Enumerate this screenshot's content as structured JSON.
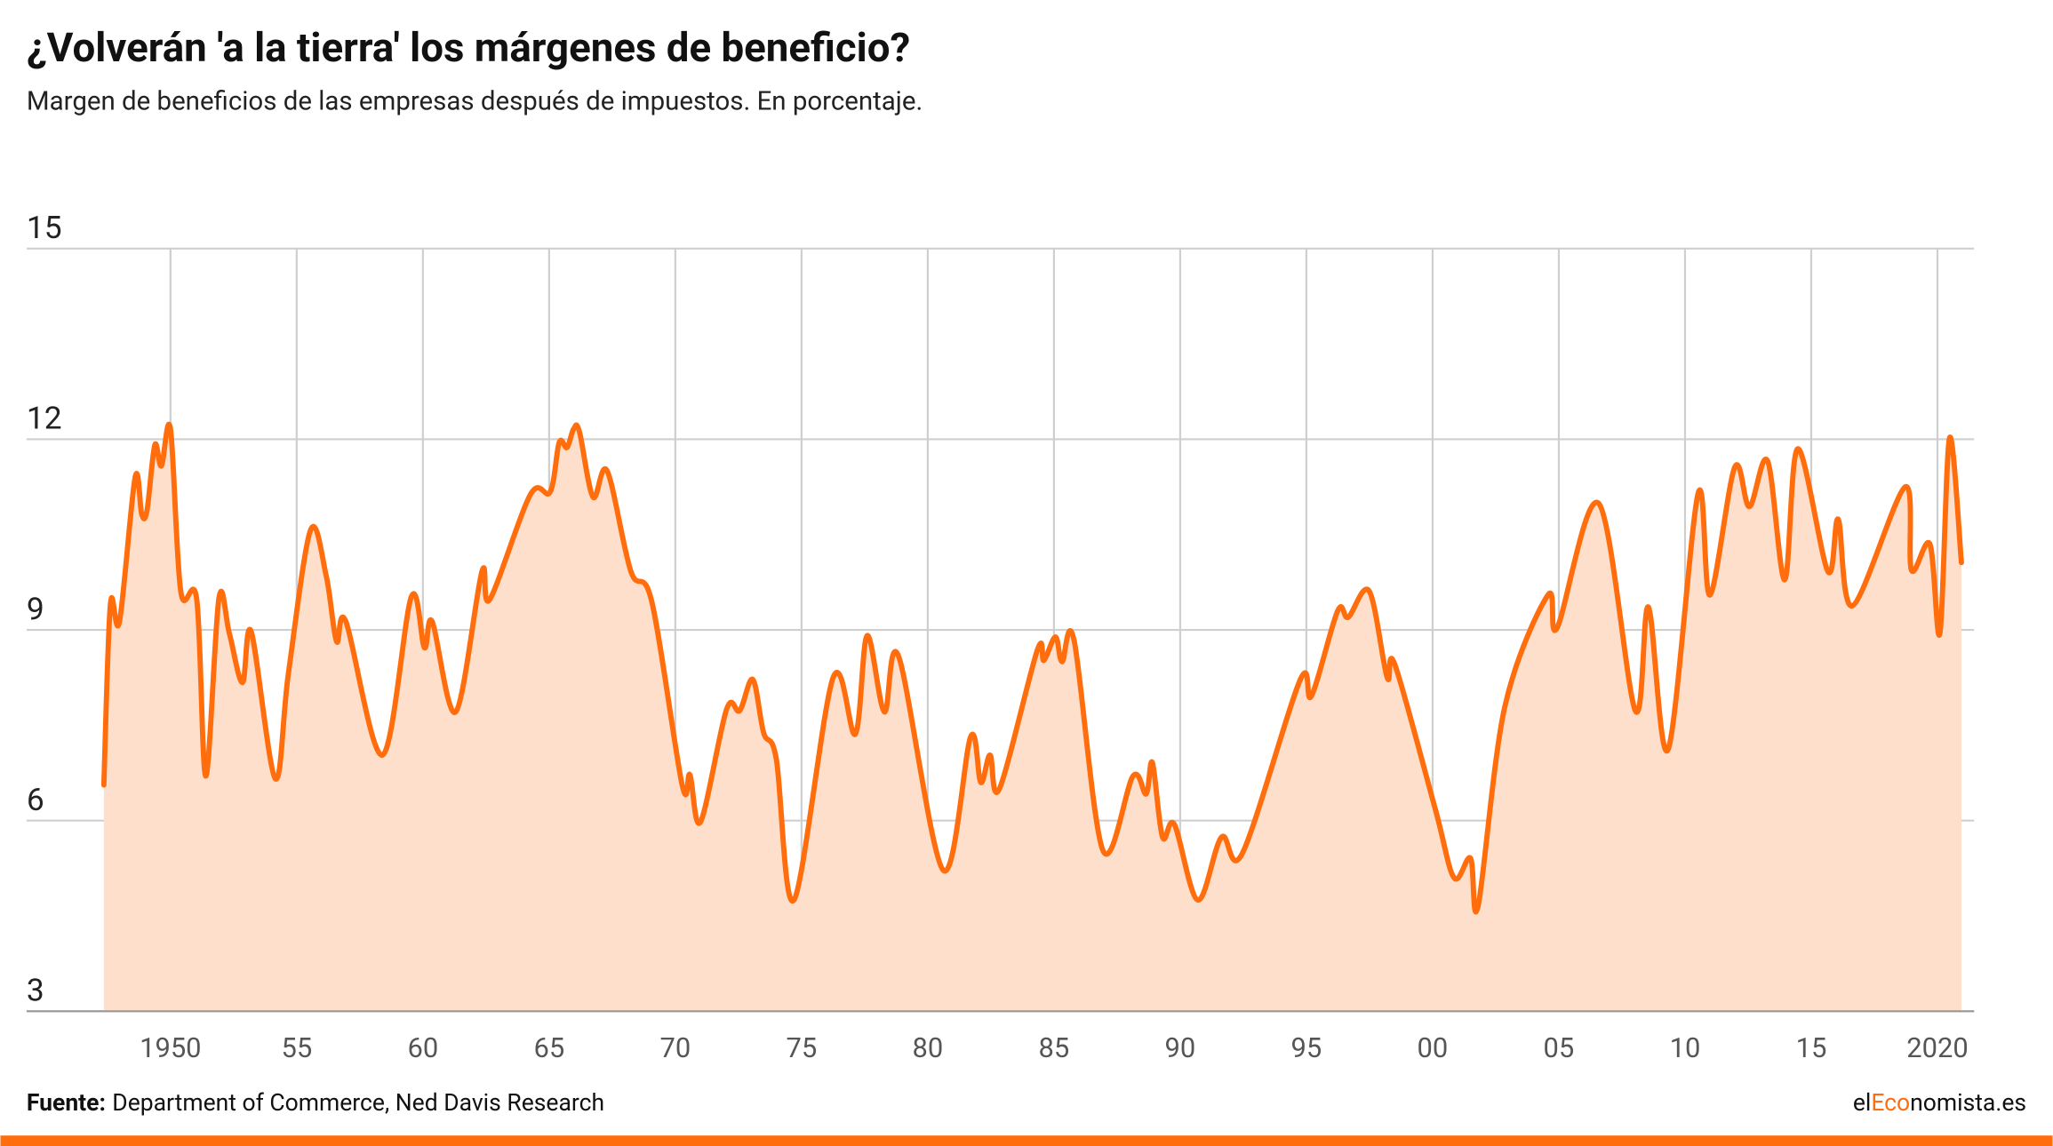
{
  "chart_data": {
    "type": "area-line",
    "title": "¿Volverán 'a la tierra' los márgenes de beneficio?",
    "subtitle": "Margen de beneficios de las empresas después de impuestos. En porcentaje.",
    "source_label": "Fuente:",
    "source": "Department of Commerce, Ned Davis Research",
    "brand": [
      "el",
      "Eco",
      "nomista.es"
    ],
    "color": "#ff6d0d",
    "fill_color": "#fddfcb",
    "grid": true,
    "xlim": [
      1944.3,
      2021.45
    ],
    "ylim": [
      3,
      15
    ],
    "yticks": [
      3,
      6,
      9,
      12,
      15
    ],
    "xticks": [
      1950,
      {
        "value": 1955,
        "label": "55"
      },
      {
        "value": 1960,
        "label": "60"
      },
      {
        "value": 1965,
        "label": "65"
      },
      {
        "value": 1970,
        "label": "70"
      },
      {
        "value": 1975,
        "label": "75"
      },
      {
        "value": 1980,
        "label": "80"
      },
      {
        "value": 1985,
        "label": "85"
      },
      {
        "value": 1990,
        "label": "90"
      },
      {
        "value": 1995,
        "label": "95"
      },
      {
        "value": 2000,
        "label": "00"
      },
      {
        "value": 2005,
        "label": "05"
      },
      {
        "value": 2010,
        "label": "10"
      },
      {
        "value": 2015,
        "label": "15"
      },
      2020
    ],
    "x": [
      1947.36,
      1947.62,
      1947.98,
      1948.6,
      1948.86,
      1949.07,
      1949.38,
      1949.64,
      1950.0,
      1950.41,
      1951.04,
      1951.4,
      1951.92,
      1952.33,
      1952.85,
      1953.2,
      1954.15,
      1954.67,
      1955.55,
      1956.17,
      1956.58,
      1956.95,
      1958.4,
      1959.54,
      1960.06,
      1960.37,
      1961.3,
      1962.34,
      1962.65,
      1964.26,
      1965.04,
      1965.4,
      1965.71,
      1965.97,
      1966.2,
      1966.74,
      1967.3,
      1968.24,
      1969.07,
      1970.27,
      1970.58,
      1971.0,
      1972.03,
      1972.55,
      1973.07,
      1973.5,
      1974.0,
      1974.7,
      1976.25,
      1977.13,
      1977.6,
      1978.28,
      1978.85,
      1980.61,
      1981.7,
      1982.1,
      1982.47,
      1982.84,
      1984.34,
      1984.6,
      1985.06,
      1985.32,
      1985.8,
      1986.94,
      1988.13,
      1988.65,
      1988.9,
      1989.3,
      1989.77,
      1990.7,
      1991.64,
      1992.47,
      1994.75,
      1995.2,
      1996.24,
      1996.66,
      1997.49,
      1998.2,
      1998.5,
      2000.1,
      2000.85,
      2001.5,
      2001.8,
      2002.86,
      2004.57,
      2004.93,
      2006.58,
      2008.03,
      2008.55,
      2009.33,
      2010.52,
      2010.99,
      2011.97,
      2012.55,
      2013.27,
      2013.95,
      2014.47,
      2015.66,
      2016.07,
      2016.64,
      2018.72,
      2018.97,
      2019.7,
      2020.1,
      2020.48,
      2020.95
    ],
    "values": [
      6.56,
      9.4,
      9.13,
      11.4,
      10.82,
      10.88,
      11.91,
      11.58,
      12.16,
      9.6,
      9.48,
      6.7,
      9.5,
      8.95,
      8.17,
      8.97,
      6.66,
      8.31,
      10.57,
      9.85,
      8.82,
      9.13,
      7.03,
      9.52,
      8.72,
      9.13,
      7.71,
      9.92,
      9.48,
      11.13,
      11.17,
      11.95,
      11.87,
      12.16,
      12.12,
      11.09,
      11.5,
      9.92,
      9.44,
      6.56,
      6.72,
      5.98,
      7.75,
      7.73,
      8.22,
      7.38,
      6.97,
      4.75,
      8.25,
      7.36,
      8.91,
      7.71,
      8.58,
      5.22,
      7.32,
      6.6,
      7.03,
      6.5,
      8.68,
      8.52,
      8.89,
      8.5,
      8.83,
      5.53,
      6.7,
      6.42,
      6.91,
      5.74,
      5.94,
      4.75,
      5.74,
      5.49,
      8.21,
      7.96,
      9.3,
      9.2,
      9.61,
      8.25,
      8.46,
      6.19,
      5.1,
      5.41,
      4.65,
      7.79,
      9.55,
      9.03,
      10.99,
      7.73,
      9.36,
      7.12,
      11.15,
      9.55,
      11.56,
      10.94,
      11.66,
      9.79,
      11.85,
      9.92,
      10.74,
      9.38,
      11.25,
      9.94,
      10.35,
      8.95,
      12.02,
      10.06
    ]
  }
}
